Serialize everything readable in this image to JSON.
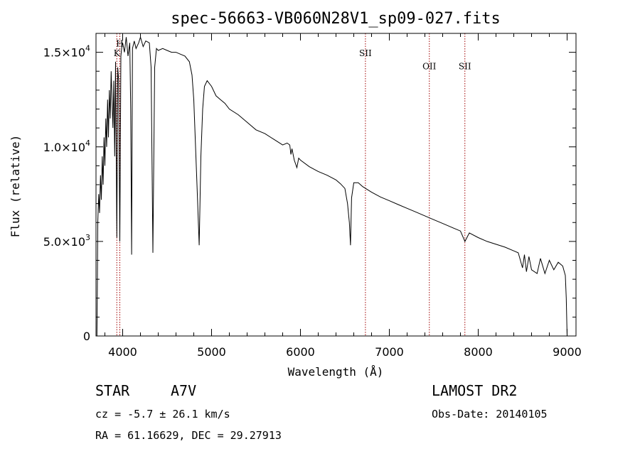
{
  "chart_data": {
    "type": "line",
    "title": "spec-56663-VB060N28V1_sp09-027.fits",
    "xlabel": "Wavelength (Å)",
    "ylabel": "Flux (relative)",
    "xlim": [
      3700,
      9100
    ],
    "ylim": [
      0,
      16000
    ],
    "grid": false,
    "x_ticks": [
      {
        "value": 4000,
        "label": "4000"
      },
      {
        "value": 5000,
        "label": "5000"
      },
      {
        "value": 6000,
        "label": "6000"
      },
      {
        "value": 7000,
        "label": "7000"
      },
      {
        "value": 8000,
        "label": "8000"
      },
      {
        "value": 9000,
        "label": "9000"
      }
    ],
    "y_ticks": [
      {
        "value": 0,
        "mant": "0",
        "exp": ""
      },
      {
        "value": 5000,
        "mant": "5.0×10",
        "exp": "3"
      },
      {
        "value": 10000,
        "mant": "1.0×10",
        "exp": "4"
      },
      {
        "value": 15000,
        "mant": "1.5×10",
        "exp": "4"
      }
    ],
    "lines": [
      {
        "label": "K",
        "x": 3934,
        "level": 14800
      },
      {
        "label": "H",
        "x": 3968,
        "level": 15300
      },
      {
        "label": "SII",
        "x": 6731,
        "level": 14800
      },
      {
        "label": "OII",
        "x": 7450,
        "level": 14100
      },
      {
        "label": "SII",
        "x": 7850,
        "level": 14100
      }
    ],
    "series": [
      {
        "x": [
          3710,
          3715,
          3720,
          3730,
          3740,
          3750,
          3760,
          3770,
          3780,
          3790,
          3800,
          3810,
          3820,
          3830,
          3840,
          3850,
          3860,
          3870,
          3880,
          3890,
          3900,
          3910,
          3920,
          3934,
          3945,
          3955,
          3968,
          3980,
          3990,
          4000,
          4020,
          4040,
          4060,
          4080,
          4090,
          4101,
          4110,
          4130,
          4150,
          4180,
          4200,
          4230,
          4260,
          4300,
          4320,
          4340,
          4360,
          4380,
          4400,
          4450,
          4500,
          4550,
          4600,
          4650,
          4700,
          4750,
          4780,
          4800,
          4820,
          4840,
          4861,
          4880,
          4900,
          4920,
          4950,
          5000,
          5050,
          5100,
          5150,
          5200,
          5300,
          5400,
          5500,
          5600,
          5700,
          5800,
          5850,
          5880,
          5893,
          5905,
          5930,
          5960,
          5980,
          6000,
          6100,
          6200,
          6300,
          6400,
          6450,
          6500,
          6530,
          6550,
          6563,
          6575,
          6600,
          6650,
          6700,
          6800,
          6900,
          7000,
          7100,
          7200,
          7300,
          7400,
          7500,
          7600,
          7700,
          7800,
          7850,
          7900,
          8000,
          8100,
          8200,
          8300,
          8400,
          8450,
          8498,
          8520,
          8542,
          8570,
          8600,
          8662,
          8700,
          8750,
          8800,
          8850,
          8900,
          8950,
          8980,
          8990,
          9000
        ],
        "y": [
          0,
          2500,
          6000,
          7500,
          6500,
          8500,
          7200,
          9500,
          8000,
          10500,
          9000,
          11500,
          10000,
          12500,
          10500,
          13000,
          11500,
          14000,
          12500,
          11000,
          13500,
          9500,
          14500,
          5200,
          14200,
          13500,
          5000,
          14800,
          15300,
          15500,
          15000,
          15800,
          14800,
          15500,
          12000,
          4300,
          15200,
          15600,
          15200,
          15500,
          15800,
          15300,
          15600,
          15500,
          14200,
          4400,
          14200,
          15200,
          15100,
          15200,
          15100,
          15000,
          15000,
          14900,
          14800,
          14500,
          13800,
          12500,
          10000,
          7500,
          4800,
          9500,
          12000,
          13200,
          13500,
          13200,
          12700,
          12500,
          12300,
          12000,
          11700,
          11300,
          10900,
          10700,
          10400,
          10100,
          10200,
          10100,
          9600,
          9900,
          9300,
          8900,
          9400,
          9300,
          8950,
          8700,
          8500,
          8250,
          8050,
          7800,
          7000,
          6000,
          4800,
          7300,
          8100,
          8100,
          7900,
          7600,
          7350,
          7150,
          6950,
          6750,
          6550,
          6350,
          6150,
          5950,
          5750,
          5550,
          5000,
          5450,
          5200,
          5000,
          4850,
          4700,
          4500,
          4400,
          3600,
          4300,
          3400,
          4200,
          3500,
          3300,
          4100,
          3300,
          4000,
          3500,
          3900,
          3700,
          3200,
          2000,
          0
        ]
      }
    ]
  },
  "info": {
    "object_class": "STAR",
    "subclass": "A7V",
    "survey": "LAMOST DR2",
    "cz": "cz = -5.7 ± 26.1 km/s",
    "obs_date": "Obs-Date: 20140105",
    "coords": "RA =  61.16629, DEC =  29.27913"
  }
}
